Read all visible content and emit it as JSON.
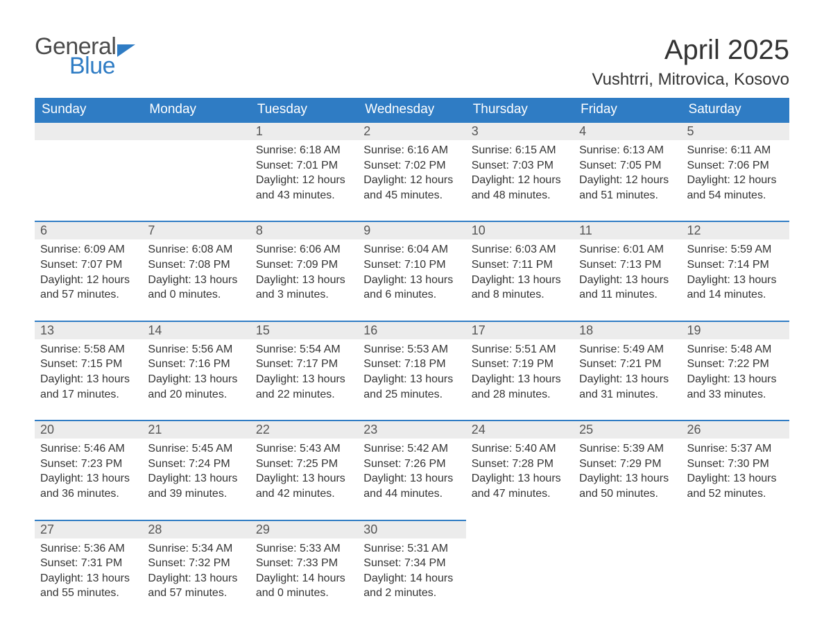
{
  "brand": {
    "general": "General",
    "blue": "Blue"
  },
  "title": "April 2025",
  "location": "Vushtrri, Mitrovica, Kosovo",
  "colors": {
    "header_bg": "#2f7cc4",
    "header_text": "#ffffff",
    "daynum_bg": "#ececec",
    "daynum_text": "#555555",
    "body_text": "#333333",
    "rule": "#2f7cc4",
    "page_bg": "#ffffff",
    "logo_gray": "#4b4b4b",
    "logo_blue": "#2f7cc4"
  },
  "typography": {
    "title_fontsize": 40,
    "location_fontsize": 24,
    "header_fontsize": 19,
    "daynum_fontsize": 18,
    "body_fontsize": 16
  },
  "weekdays": [
    "Sunday",
    "Monday",
    "Tuesday",
    "Wednesday",
    "Thursday",
    "Friday",
    "Saturday"
  ],
  "weeks": [
    [
      null,
      null,
      {
        "n": "1",
        "sunrise": "Sunrise: 6:18 AM",
        "sunset": "Sunset: 7:01 PM",
        "dl1": "Daylight: 12 hours",
        "dl2": "and 43 minutes."
      },
      {
        "n": "2",
        "sunrise": "Sunrise: 6:16 AM",
        "sunset": "Sunset: 7:02 PM",
        "dl1": "Daylight: 12 hours",
        "dl2": "and 45 minutes."
      },
      {
        "n": "3",
        "sunrise": "Sunrise: 6:15 AM",
        "sunset": "Sunset: 7:03 PM",
        "dl1": "Daylight: 12 hours",
        "dl2": "and 48 minutes."
      },
      {
        "n": "4",
        "sunrise": "Sunrise: 6:13 AM",
        "sunset": "Sunset: 7:05 PM",
        "dl1": "Daylight: 12 hours",
        "dl2": "and 51 minutes."
      },
      {
        "n": "5",
        "sunrise": "Sunrise: 6:11 AM",
        "sunset": "Sunset: 7:06 PM",
        "dl1": "Daylight: 12 hours",
        "dl2": "and 54 minutes."
      }
    ],
    [
      {
        "n": "6",
        "sunrise": "Sunrise: 6:09 AM",
        "sunset": "Sunset: 7:07 PM",
        "dl1": "Daylight: 12 hours",
        "dl2": "and 57 minutes."
      },
      {
        "n": "7",
        "sunrise": "Sunrise: 6:08 AM",
        "sunset": "Sunset: 7:08 PM",
        "dl1": "Daylight: 13 hours",
        "dl2": "and 0 minutes."
      },
      {
        "n": "8",
        "sunrise": "Sunrise: 6:06 AM",
        "sunset": "Sunset: 7:09 PM",
        "dl1": "Daylight: 13 hours",
        "dl2": "and 3 minutes."
      },
      {
        "n": "9",
        "sunrise": "Sunrise: 6:04 AM",
        "sunset": "Sunset: 7:10 PM",
        "dl1": "Daylight: 13 hours",
        "dl2": "and 6 minutes."
      },
      {
        "n": "10",
        "sunrise": "Sunrise: 6:03 AM",
        "sunset": "Sunset: 7:11 PM",
        "dl1": "Daylight: 13 hours",
        "dl2": "and 8 minutes."
      },
      {
        "n": "11",
        "sunrise": "Sunrise: 6:01 AM",
        "sunset": "Sunset: 7:13 PM",
        "dl1": "Daylight: 13 hours",
        "dl2": "and 11 minutes."
      },
      {
        "n": "12",
        "sunrise": "Sunrise: 5:59 AM",
        "sunset": "Sunset: 7:14 PM",
        "dl1": "Daylight: 13 hours",
        "dl2": "and 14 minutes."
      }
    ],
    [
      {
        "n": "13",
        "sunrise": "Sunrise: 5:58 AM",
        "sunset": "Sunset: 7:15 PM",
        "dl1": "Daylight: 13 hours",
        "dl2": "and 17 minutes."
      },
      {
        "n": "14",
        "sunrise": "Sunrise: 5:56 AM",
        "sunset": "Sunset: 7:16 PM",
        "dl1": "Daylight: 13 hours",
        "dl2": "and 20 minutes."
      },
      {
        "n": "15",
        "sunrise": "Sunrise: 5:54 AM",
        "sunset": "Sunset: 7:17 PM",
        "dl1": "Daylight: 13 hours",
        "dl2": "and 22 minutes."
      },
      {
        "n": "16",
        "sunrise": "Sunrise: 5:53 AM",
        "sunset": "Sunset: 7:18 PM",
        "dl1": "Daylight: 13 hours",
        "dl2": "and 25 minutes."
      },
      {
        "n": "17",
        "sunrise": "Sunrise: 5:51 AM",
        "sunset": "Sunset: 7:19 PM",
        "dl1": "Daylight: 13 hours",
        "dl2": "and 28 minutes."
      },
      {
        "n": "18",
        "sunrise": "Sunrise: 5:49 AM",
        "sunset": "Sunset: 7:21 PM",
        "dl1": "Daylight: 13 hours",
        "dl2": "and 31 minutes."
      },
      {
        "n": "19",
        "sunrise": "Sunrise: 5:48 AM",
        "sunset": "Sunset: 7:22 PM",
        "dl1": "Daylight: 13 hours",
        "dl2": "and 33 minutes."
      }
    ],
    [
      {
        "n": "20",
        "sunrise": "Sunrise: 5:46 AM",
        "sunset": "Sunset: 7:23 PM",
        "dl1": "Daylight: 13 hours",
        "dl2": "and 36 minutes."
      },
      {
        "n": "21",
        "sunrise": "Sunrise: 5:45 AM",
        "sunset": "Sunset: 7:24 PM",
        "dl1": "Daylight: 13 hours",
        "dl2": "and 39 minutes."
      },
      {
        "n": "22",
        "sunrise": "Sunrise: 5:43 AM",
        "sunset": "Sunset: 7:25 PM",
        "dl1": "Daylight: 13 hours",
        "dl2": "and 42 minutes."
      },
      {
        "n": "23",
        "sunrise": "Sunrise: 5:42 AM",
        "sunset": "Sunset: 7:26 PM",
        "dl1": "Daylight: 13 hours",
        "dl2": "and 44 minutes."
      },
      {
        "n": "24",
        "sunrise": "Sunrise: 5:40 AM",
        "sunset": "Sunset: 7:28 PM",
        "dl1": "Daylight: 13 hours",
        "dl2": "and 47 minutes."
      },
      {
        "n": "25",
        "sunrise": "Sunrise: 5:39 AM",
        "sunset": "Sunset: 7:29 PM",
        "dl1": "Daylight: 13 hours",
        "dl2": "and 50 minutes."
      },
      {
        "n": "26",
        "sunrise": "Sunrise: 5:37 AM",
        "sunset": "Sunset: 7:30 PM",
        "dl1": "Daylight: 13 hours",
        "dl2": "and 52 minutes."
      }
    ],
    [
      {
        "n": "27",
        "sunrise": "Sunrise: 5:36 AM",
        "sunset": "Sunset: 7:31 PM",
        "dl1": "Daylight: 13 hours",
        "dl2": "and 55 minutes."
      },
      {
        "n": "28",
        "sunrise": "Sunrise: 5:34 AM",
        "sunset": "Sunset: 7:32 PM",
        "dl1": "Daylight: 13 hours",
        "dl2": "and 57 minutes."
      },
      {
        "n": "29",
        "sunrise": "Sunrise: 5:33 AM",
        "sunset": "Sunset: 7:33 PM",
        "dl1": "Daylight: 14 hours",
        "dl2": "and 0 minutes."
      },
      {
        "n": "30",
        "sunrise": "Sunrise: 5:31 AM",
        "sunset": "Sunset: 7:34 PM",
        "dl1": "Daylight: 14 hours",
        "dl2": "and 2 minutes."
      },
      null,
      null,
      null
    ]
  ]
}
